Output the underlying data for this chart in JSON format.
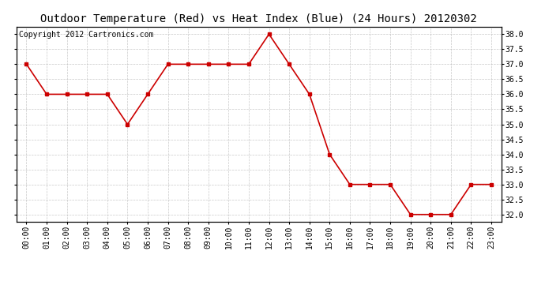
{
  "title": "Outdoor Temperature (Red) vs Heat Index (Blue) (24 Hours) 20120302",
  "copyright_text": "Copyright 2012 Cartronics.com",
  "hours": [
    "00:00",
    "01:00",
    "02:00",
    "03:00",
    "04:00",
    "05:00",
    "06:00",
    "07:00",
    "08:00",
    "09:00",
    "10:00",
    "11:00",
    "12:00",
    "13:00",
    "14:00",
    "15:00",
    "16:00",
    "17:00",
    "18:00",
    "19:00",
    "20:00",
    "21:00",
    "22:00",
    "23:00"
  ],
  "temp_red": [
    37.0,
    36.0,
    36.0,
    36.0,
    36.0,
    35.0,
    36.0,
    37.0,
    37.0,
    37.0,
    37.0,
    37.0,
    38.0,
    37.0,
    36.0,
    34.0,
    33.0,
    33.0,
    33.0,
    32.0,
    32.0,
    32.0,
    33.0,
    33.0
  ],
  "ylim": [
    31.75,
    38.25
  ],
  "ytick_min": 32.0,
  "ytick_max": 38.0,
  "ytick_step": 0.5,
  "line_color_red": "#cc0000",
  "marker": "s",
  "marker_size": 3,
  "bg_color": "#ffffff",
  "plot_bg_color": "#ffffff",
  "grid_color": "#bbbbbb",
  "title_fontsize": 10,
  "copyright_fontsize": 7,
  "tick_fontsize": 7,
  "linewidth": 1.2
}
